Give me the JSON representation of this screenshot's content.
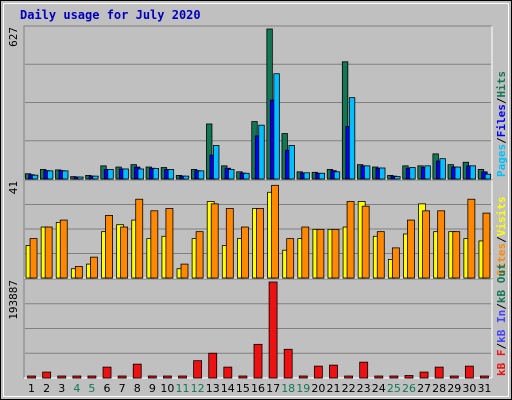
{
  "chart_data": {
    "type": "bar",
    "title": "Daily usage for July 2020",
    "colors": {
      "background": "#c0c0c0",
      "title": "#0000c0",
      "hits": "#117755",
      "files": "#0000ff",
      "pages": "#00c0ff",
      "visits": "#ffff00",
      "sites": "#ff8800",
      "kb_out": "#ee6600",
      "kb_in": "#4444ff",
      "kb_f": "#ee1111",
      "weekend_label": "#117755",
      "weekday_label": "#000000",
      "grid": "#808080"
    },
    "categories": [
      "1",
      "2",
      "3",
      "4",
      "5",
      "6",
      "7",
      "8",
      "9",
      "10",
      "11",
      "12",
      "13",
      "14",
      "15",
      "16",
      "17",
      "18",
      "19",
      "20",
      "21",
      "22",
      "23",
      "24",
      "25",
      "26",
      "27",
      "28",
      "29",
      "30",
      "31"
    ],
    "weekend_days": [
      "4",
      "5",
      "11",
      "12",
      "18",
      "19",
      "25",
      "26"
    ],
    "panels": [
      {
        "max_label": "627",
        "ylim": [
          0,
          627
        ],
        "legend": [
          {
            "text": "Pages",
            "color": "#00c0ff"
          },
          {
            "text": "/",
            "color": "#000000"
          },
          {
            "text": "Files",
            "color": "#0000ff"
          },
          {
            "text": "/",
            "color": "#000000"
          },
          {
            "text": "Hits",
            "color": "#117755"
          }
        ],
        "series": [
          {
            "name": "Hits",
            "color": "#117755",
            "values": [
              22,
              40,
              38,
              10,
              15,
              55,
              50,
              60,
              50,
              48,
              15,
              40,
              230,
              55,
              30,
              240,
              627,
              190,
              30,
              28,
              40,
              490,
              60,
              50,
              15,
              55,
              55,
              105,
              60,
              70,
              40
            ]
          },
          {
            "name": "Files",
            "color": "#0000ff",
            "values": [
              18,
              35,
              35,
              8,
              12,
              40,
              42,
              50,
              45,
              40,
              12,
              35,
              100,
              45,
              25,
              180,
              330,
              120,
              25,
              24,
              35,
              220,
              55,
              45,
              12,
              45,
              48,
              75,
              50,
              55,
              30
            ]
          },
          {
            "name": "Pages",
            "color": "#00c0ff",
            "values": [
              16,
              34,
              34,
              8,
              12,
              40,
              42,
              42,
              44,
              40,
              12,
              34,
              140,
              40,
              24,
              225,
              440,
              140,
              26,
              24,
              30,
              340,
              55,
              46,
              10,
              48,
              55,
              85,
              50,
              55,
              20
            ]
          }
        ]
      },
      {
        "max_label": "41",
        "ylim": [
          0,
          41
        ],
        "legend": [
          {
            "text": "Sites",
            "color": "#ff8800"
          },
          {
            "text": "/",
            "color": "#000000"
          },
          {
            "text": "Visits",
            "color": "#ffff00"
          }
        ],
        "series": [
          {
            "name": "Visits",
            "color": "#ffff00",
            "values": [
              14,
              22,
              24,
              4,
              6,
              20,
              23,
              25,
              17,
              18,
              4,
              17,
              33,
              14,
              17,
              30,
              37,
              12,
              17,
              21,
              21,
              22,
              33,
              18,
              8,
              19,
              32,
              20,
              20,
              17,
              16
            ]
          },
          {
            "name": "Sites",
            "color": "#ff8800",
            "values": [
              17,
              22,
              25,
              5,
              9,
              27,
              22,
              34,
              29,
              30,
              6,
              20,
              32,
              30,
              22,
              30,
              40,
              17,
              22,
              21,
              21,
              33,
              31,
              20,
              13,
              25,
              29,
              29,
              20,
              34,
              28
            ]
          }
        ]
      },
      {
        "max_label": "193887",
        "ylim": [
          0,
          193887
        ],
        "legend": [
          {
            "text": "kB F",
            "color": "#ee1111"
          },
          {
            "text": "/",
            "color": "#000000"
          },
          {
            "text": "kB In",
            "color": "#4444ff"
          },
          {
            "text": "/",
            "color": "#000000"
          },
          {
            "text": "kB Out",
            "color": "#117755"
          }
        ],
        "series": [
          {
            "name": "kB F",
            "color": "#ee1111",
            "values": [
              3000,
              12000,
              3000,
              2000,
              2000,
              22000,
              3000,
              28000,
              3000,
              3000,
              2000,
              35000,
              50000,
              22000,
              3000,
              68000,
              193887,
              58000,
              3000,
              24000,
              26000,
              3000,
              32000,
              3000,
              3000,
              5000,
              12000,
              22000,
              3000,
              24000,
              4000
            ]
          }
        ]
      }
    ]
  }
}
